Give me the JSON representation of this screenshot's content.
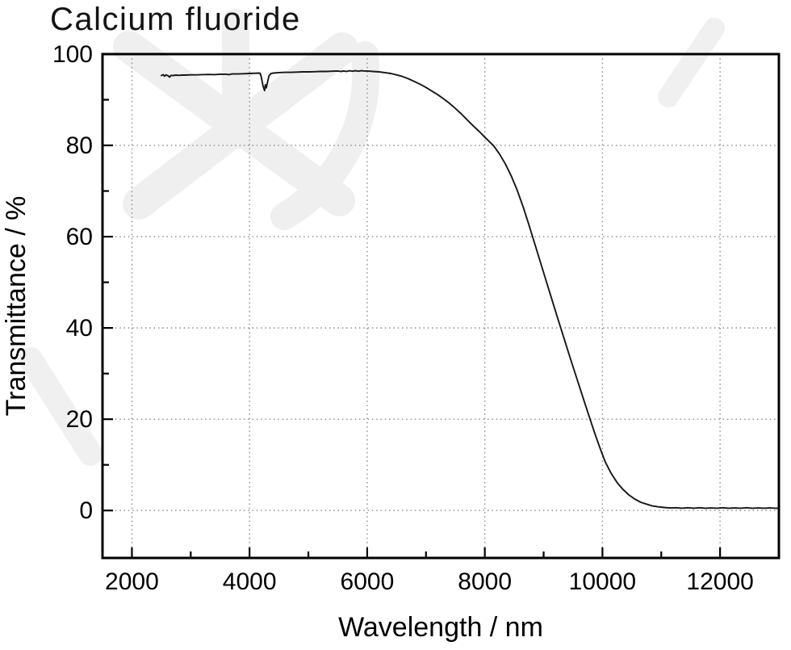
{
  "chart_data": {
    "type": "line",
    "title": "Calcium fluoride",
    "xlabel": "Wavelength / nm",
    "ylabel": "Transmittance / %",
    "xlim": [
      1500,
      13000
    ],
    "ylim": [
      -10.4,
      100
    ],
    "x_major_ticks": [
      2000,
      4000,
      6000,
      8000,
      10000,
      12000
    ],
    "x_minor_ticks": [
      3000,
      5000,
      7000,
      9000,
      11000
    ],
    "y_major_ticks": [
      0,
      20,
      40,
      60,
      80,
      100
    ],
    "y_minor_ticks": [
      10,
      30,
      50,
      70,
      90
    ],
    "grid": {
      "major": true,
      "minor": false,
      "style": "dotted",
      "color": "#8a8a8a",
      "legend": "none"
    },
    "line_color": "#161616",
    "frame_color": "#000000",
    "watermark": {
      "description": "faint light-gray crystal starburst logo behind upper-left plot area",
      "color": "#ebebeb"
    },
    "series": [
      {
        "name": "Calcium fluoride transmittance",
        "points": [
          [
            2500,
            95.3
          ],
          [
            2530,
            95.5
          ],
          [
            2555,
            95.15
          ],
          [
            2580,
            95.45
          ],
          [
            2610,
            95.3
          ],
          [
            2640,
            94.95
          ],
          [
            2665,
            95.35
          ],
          [
            2700,
            95.3
          ],
          [
            2750,
            95.4
          ],
          [
            2800,
            95.35
          ],
          [
            2850,
            95.4
          ],
          [
            2900,
            95.4
          ],
          [
            3000,
            95.45
          ],
          [
            3100,
            95.45
          ],
          [
            3200,
            95.5
          ],
          [
            3300,
            95.55
          ],
          [
            3400,
            95.5
          ],
          [
            3500,
            95.6
          ],
          [
            3600,
            95.6
          ],
          [
            3650,
            95.5
          ],
          [
            3700,
            95.65
          ],
          [
            3800,
            95.65
          ],
          [
            3900,
            95.7
          ],
          [
            4000,
            95.75
          ],
          [
            4100,
            95.8
          ],
          [
            4150,
            95.85
          ],
          [
            4180,
            95.8
          ],
          [
            4200,
            95.0
          ],
          [
            4230,
            93.0
          ],
          [
            4255,
            92.0
          ],
          [
            4270,
            93.3
          ],
          [
            4285,
            92.6
          ],
          [
            4305,
            93.8
          ],
          [
            4330,
            95.2
          ],
          [
            4360,
            95.7
          ],
          [
            4400,
            95.85
          ],
          [
            4500,
            95.95
          ],
          [
            4600,
            96.0
          ],
          [
            4700,
            96.0
          ],
          [
            4800,
            96.05
          ],
          [
            4900,
            96.1
          ],
          [
            5000,
            96.1
          ],
          [
            5100,
            96.15
          ],
          [
            5200,
            96.2
          ],
          [
            5300,
            96.2
          ],
          [
            5400,
            96.25
          ],
          [
            5500,
            96.3
          ],
          [
            5550,
            96.2
          ],
          [
            5600,
            96.3
          ],
          [
            5650,
            96.2
          ],
          [
            5700,
            96.35
          ],
          [
            5750,
            96.25
          ],
          [
            5800,
            96.35
          ],
          [
            5850,
            96.25
          ],
          [
            5900,
            96.35
          ],
          [
            5950,
            96.3
          ],
          [
            6000,
            96.3
          ],
          [
            6100,
            96.2
          ],
          [
            6200,
            96.1
          ],
          [
            6300,
            95.95
          ],
          [
            6400,
            95.75
          ],
          [
            6500,
            95.45
          ],
          [
            6600,
            95.1
          ],
          [
            6700,
            94.6
          ],
          [
            6800,
            94.0
          ],
          [
            6900,
            93.4
          ],
          [
            7000,
            92.7
          ],
          [
            7100,
            91.9
          ],
          [
            7200,
            91.1
          ],
          [
            7300,
            90.2
          ],
          [
            7400,
            89.2
          ],
          [
            7500,
            88.1
          ],
          [
            7600,
            86.9
          ],
          [
            7700,
            85.6
          ],
          [
            7800,
            84.3
          ],
          [
            7900,
            83.1
          ],
          [
            8000,
            81.8
          ],
          [
            8150,
            79.9
          ],
          [
            8250,
            78.1
          ],
          [
            8350,
            75.9
          ],
          [
            8450,
            73.3
          ],
          [
            8550,
            70.2
          ],
          [
            8650,
            66.6
          ],
          [
            8750,
            62.6
          ],
          [
            8850,
            58.4
          ],
          [
            8950,
            54.2
          ],
          [
            9050,
            50.0
          ],
          [
            9150,
            45.8
          ],
          [
            9250,
            41.7
          ],
          [
            9350,
            37.6
          ],
          [
            9450,
            33.5
          ],
          [
            9550,
            29.5
          ],
          [
            9650,
            25.5
          ],
          [
            9770,
            20.8
          ],
          [
            9870,
            16.9
          ],
          [
            9960,
            13.6
          ],
          [
            10050,
            10.6
          ],
          [
            10150,
            8.1
          ],
          [
            10250,
            6.1
          ],
          [
            10350,
            4.6
          ],
          [
            10450,
            3.4
          ],
          [
            10550,
            2.5
          ],
          [
            10650,
            1.8
          ],
          [
            10750,
            1.4
          ],
          [
            10850,
            1.0
          ],
          [
            10950,
            0.8
          ],
          [
            11050,
            0.65
          ],
          [
            11150,
            0.55
          ],
          [
            11250,
            0.6
          ],
          [
            11350,
            0.5
          ],
          [
            11450,
            0.6
          ],
          [
            11550,
            0.5
          ],
          [
            11650,
            0.6
          ],
          [
            11750,
            0.5
          ],
          [
            11850,
            0.55
          ],
          [
            11950,
            0.5
          ],
          [
            12050,
            0.6
          ],
          [
            12150,
            0.5
          ],
          [
            12250,
            0.55
          ],
          [
            12350,
            0.5
          ],
          [
            12450,
            0.6
          ],
          [
            12550,
            0.5
          ],
          [
            12650,
            0.55
          ],
          [
            12750,
            0.5
          ],
          [
            12850,
            0.55
          ],
          [
            12950,
            0.5
          ],
          [
            13000,
            0.5
          ]
        ]
      }
    ]
  }
}
